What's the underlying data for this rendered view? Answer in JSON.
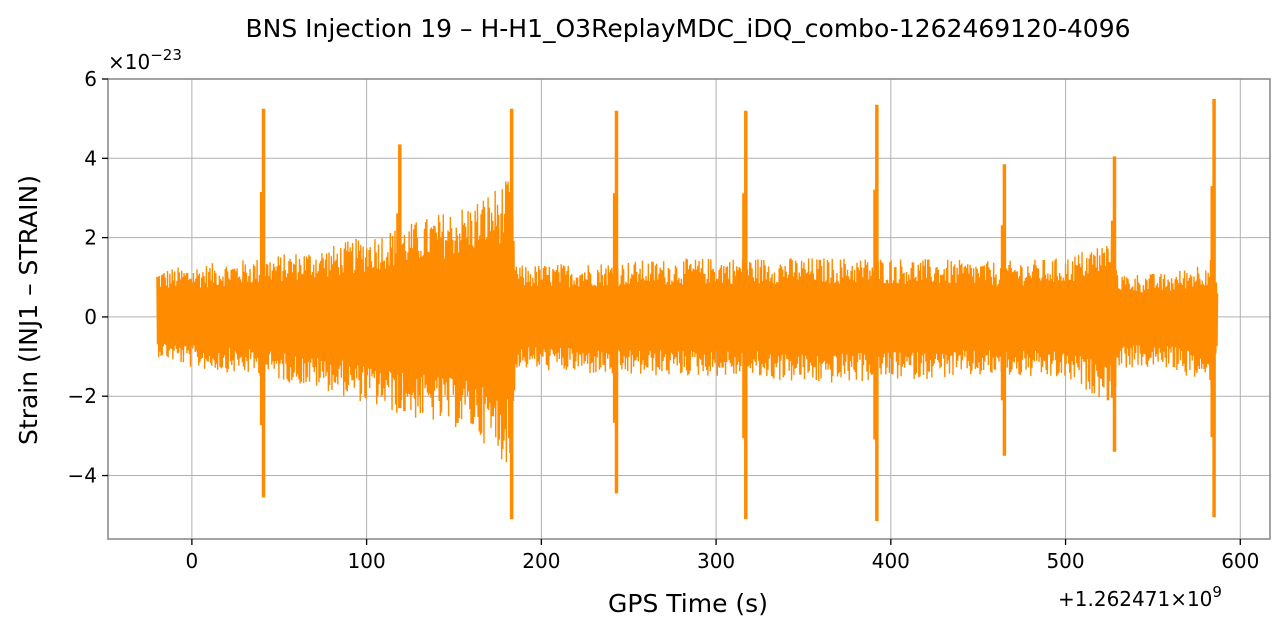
{
  "chart_data": {
    "type": "line",
    "title": "BNS Injection 19 – H-H1_O3ReplayMDC_iDQ_combo-1262469120-4096",
    "xlabel": "GPS Time (s)",
    "ylabel": "Strain (INJ1 – STRAIN)",
    "x_offset_label": "+1.262471×10^9",
    "y_scale_label": "×10^−23",
    "xlim": [
      -48,
      617
    ],
    "ylim": [
      -5.6,
      6.0
    ],
    "x_ticks": [
      0,
      100,
      200,
      300,
      400,
      500,
      600
    ],
    "x_tick_labels": [
      "0",
      "100",
      "200",
      "300",
      "400",
      "500",
      "600"
    ],
    "y_ticks": [
      -4,
      -2,
      0,
      2,
      4,
      6
    ],
    "y_tick_labels": [
      "−4",
      "−2",
      "0",
      "2",
      "4",
      "6"
    ],
    "grid": true,
    "series": [
      {
        "color": "#ff8c00",
        "x_start": -20,
        "x_end": 587,
        "envelope": [
          {
            "x": -20,
            "upper": 1.2,
            "lower": -1.0
          },
          {
            "x": 0,
            "upper": 1.3,
            "lower": -1.3
          },
          {
            "x": 40,
            "upper": 1.5,
            "lower": -1.5
          },
          {
            "x": 80,
            "upper": 1.8,
            "lower": -1.9
          },
          {
            "x": 120,
            "upper": 2.3,
            "lower": -2.5
          },
          {
            "x": 160,
            "upper": 2.9,
            "lower": -2.9
          },
          {
            "x": 182,
            "upper": 3.5,
            "lower": -3.8
          },
          {
            "x": 186,
            "upper": 1.3,
            "lower": -1.3
          },
          {
            "x": 240,
            "upper": 1.4,
            "lower": -1.5
          },
          {
            "x": 300,
            "upper": 1.5,
            "lower": -1.5
          },
          {
            "x": 360,
            "upper": 1.5,
            "lower": -1.7
          },
          {
            "x": 400,
            "upper": 1.5,
            "lower": -1.6
          },
          {
            "x": 460,
            "upper": 1.4,
            "lower": -1.5
          },
          {
            "x": 500,
            "upper": 1.5,
            "lower": -1.6
          },
          {
            "x": 527,
            "upper": 2.0,
            "lower": -2.2
          },
          {
            "x": 531,
            "upper": 1.1,
            "lower": -1.3
          },
          {
            "x": 560,
            "upper": 1.1,
            "lower": -1.3
          },
          {
            "x": 584,
            "upper": 1.5,
            "lower": -1.8
          },
          {
            "x": 587,
            "upper": 0.7,
            "lower": -0.7
          }
        ],
        "glitches": [
          {
            "x": 41,
            "max": 5.25,
            "min": -4.55
          },
          {
            "x": 119,
            "max": 4.35,
            "min": -2.3
          },
          {
            "x": 183,
            "max": 5.25,
            "min": -5.1
          },
          {
            "x": 243,
            "max": 5.2,
            "min": -4.45
          },
          {
            "x": 317,
            "max": 5.2,
            "min": -5.1
          },
          {
            "x": 392,
            "max": 5.35,
            "min": -5.15
          },
          {
            "x": 465,
            "max": 3.85,
            "min": -3.5
          },
          {
            "x": 528,
            "max": 4.05,
            "min": -3.4
          },
          {
            "x": 585,
            "max": 5.5,
            "min": -5.05
          }
        ]
      }
    ]
  }
}
